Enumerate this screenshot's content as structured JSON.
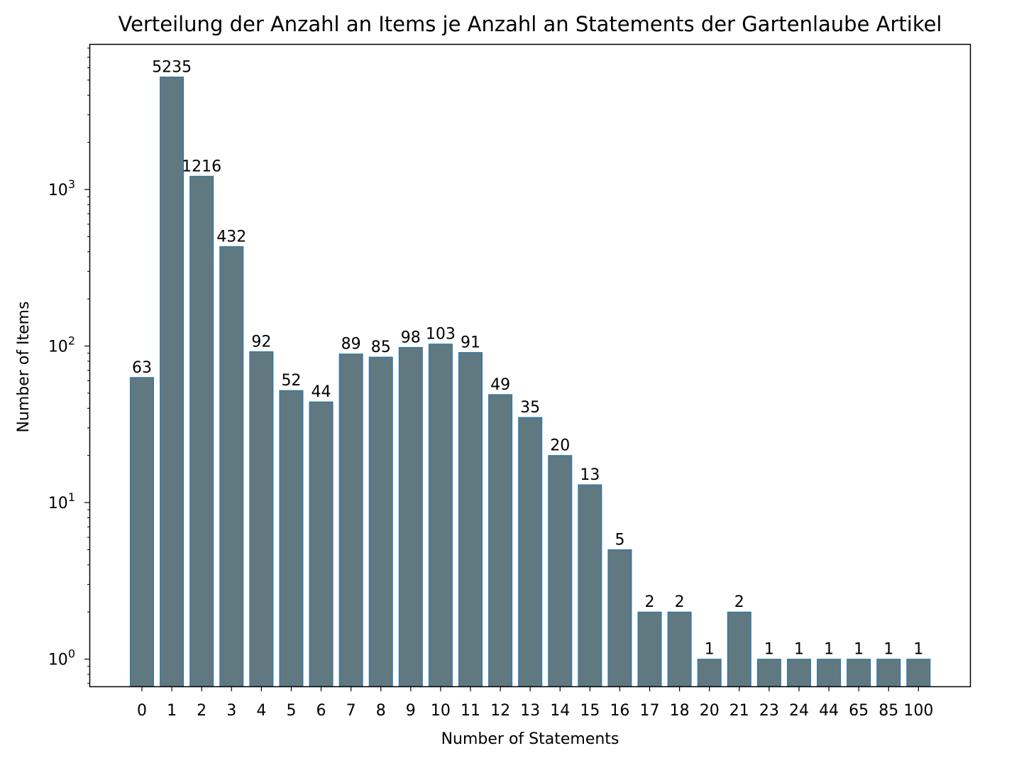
{
  "chart_data": {
    "type": "bar",
    "title": "Verteilung der Anzahl an Items je Anzahl an Statements der Gartenlaube Artikel",
    "xlabel": "Number of Statements",
    "ylabel": "Number of Items",
    "yscale": "log",
    "ylim": [
      0.67,
      8500
    ],
    "categories": [
      "0",
      "1",
      "2",
      "3",
      "4",
      "5",
      "6",
      "7",
      "8",
      "9",
      "10",
      "11",
      "12",
      "13",
      "14",
      "15",
      "16",
      "17",
      "18",
      "20",
      "21",
      "23",
      "24",
      "44",
      "65",
      "85",
      "100"
    ],
    "values": [
      63,
      5235,
      1216,
      432,
      92,
      52,
      44,
      89,
      85,
      98,
      103,
      91,
      49,
      35,
      20,
      13,
      5,
      2,
      2,
      1,
      2,
      1,
      1,
      1,
      1,
      1,
      1
    ],
    "data_labels": [
      "63",
      "5235",
      "1216",
      "432",
      "92",
      "52",
      "44",
      "89",
      "85",
      "98",
      "103",
      "91",
      "49",
      "35",
      "20",
      "13",
      "5",
      "2",
      "2",
      "1",
      "2",
      "1",
      "1",
      "1",
      "1",
      "1",
      "1"
    ],
    "y_ticks": [
      {
        "base": "10",
        "exp": "0",
        "value": 1
      },
      {
        "base": "10",
        "exp": "1",
        "value": 10
      },
      {
        "base": "10",
        "exp": "2",
        "value": 100
      },
      {
        "base": "10",
        "exp": "3",
        "value": 1000
      }
    ],
    "grid": false,
    "legend": "none",
    "colors": {
      "bar_fill": "#607880",
      "bar_edge": "#1f77b4",
      "axis": "#000000",
      "text": "#000000",
      "background": "#ffffff"
    }
  }
}
